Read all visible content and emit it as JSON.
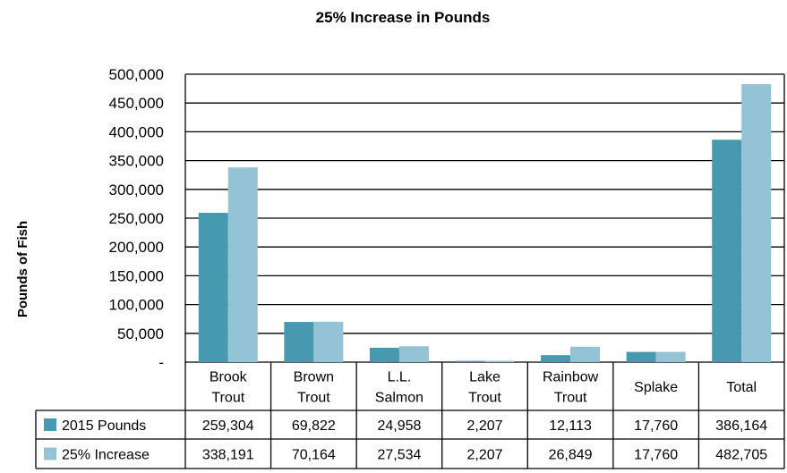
{
  "chart_data": {
    "type": "bar",
    "title": "25% Increase in Pounds",
    "ylabel": "Pounds of Fish",
    "xlabel": "",
    "categories": [
      [
        "Brook",
        "Trout"
      ],
      [
        "Brown",
        "Trout"
      ],
      [
        "L.L.",
        "Salmon"
      ],
      [
        "Lake",
        "Trout"
      ],
      [
        "Rainbow",
        "Trout"
      ],
      [
        "Splake"
      ],
      [
        "Total"
      ]
    ],
    "series": [
      {
        "name": "2015 Pounds",
        "color": "#4799b0",
        "values": [
          259304,
          69822,
          24958,
          2207,
          12113,
          17760,
          386164
        ],
        "labels": [
          "259,304",
          "69,822",
          "24,958",
          "2,207",
          "12,113",
          "17,760",
          "386,164"
        ]
      },
      {
        "name": "25% Increase",
        "color": "#93c3d5",
        "values": [
          338191,
          70164,
          27534,
          2207,
          26849,
          17760,
          482705
        ],
        "labels": [
          "338,191",
          "70,164",
          "27,534",
          "2,207",
          "26,849",
          "17,760",
          "482,705"
        ]
      }
    ],
    "ylim": [
      0,
      500000
    ],
    "yticks": [
      0,
      50000,
      100000,
      150000,
      200000,
      250000,
      300000,
      350000,
      400000,
      450000,
      500000
    ],
    "ytick_labels": [
      "-",
      "50,000",
      "100,000",
      "150,000",
      "200,000",
      "250,000",
      "300,000",
      "350,000",
      "400,000",
      "450,000",
      "500,000"
    ],
    "grid": true,
    "legend": "data-table"
  }
}
